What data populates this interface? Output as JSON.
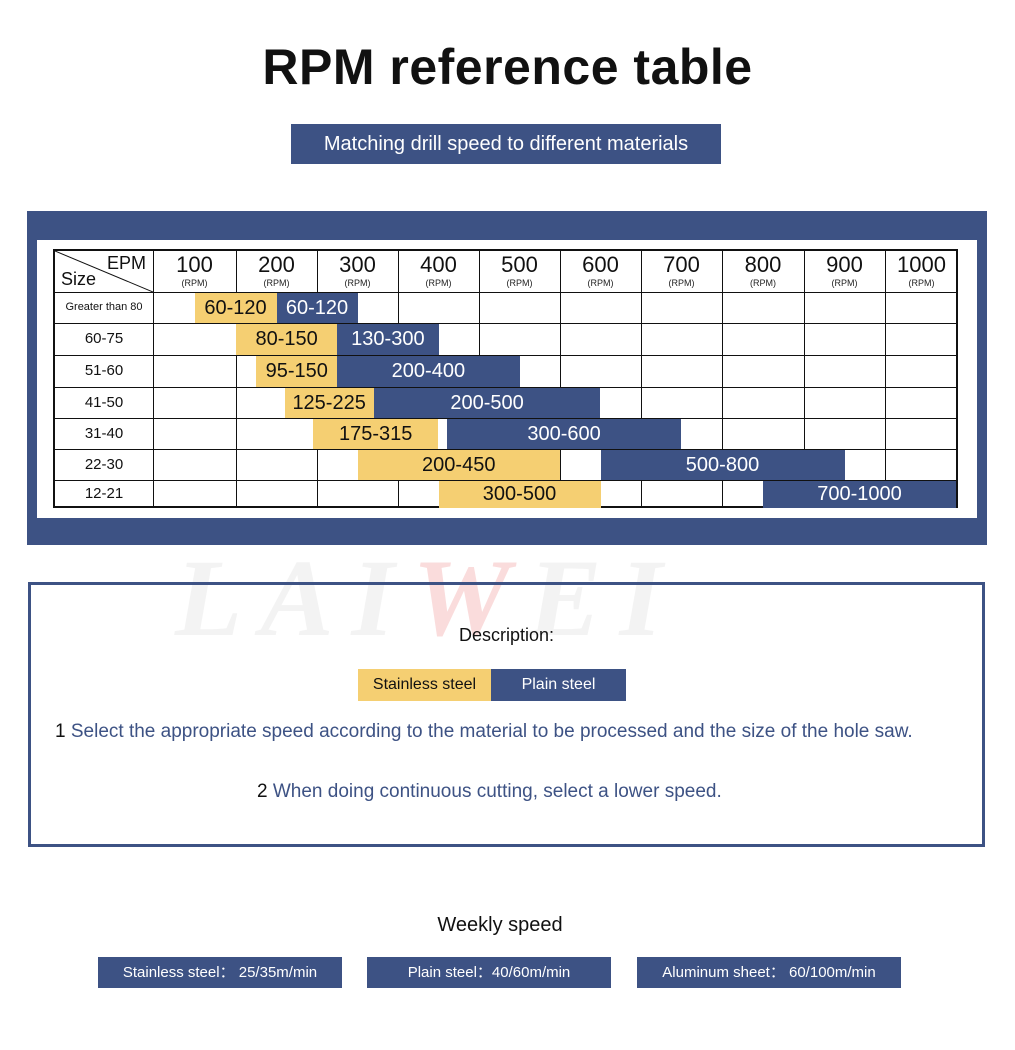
{
  "header": {
    "title": "RPM reference table",
    "subtitle": "Matching drill speed to different materials"
  },
  "table": {
    "corner_top": "EPM",
    "corner_bottom": "Size",
    "unit": "(RPM)",
    "columns": [
      "100",
      "200",
      "300",
      "400",
      "500",
      "600",
      "700",
      "800",
      "900",
      "1000"
    ],
    "rows": [
      "Greater than 80",
      "60-75",
      "51-60",
      "41-50",
      "31-40",
      "22-30",
      "12-21"
    ],
    "bars": [
      {
        "row": 0,
        "material": "stainless",
        "label": "60-120",
        "from": 100,
        "to": 200
      },
      {
        "row": 0,
        "material": "plain",
        "label": "60-120",
        "from": 200,
        "to": 300
      },
      {
        "row": 1,
        "material": "stainless",
        "label": "80-150",
        "from": 150,
        "to": 275
      },
      {
        "row": 1,
        "material": "plain",
        "label": "130-300",
        "from": 275,
        "to": 400
      },
      {
        "row": 2,
        "material": "stainless",
        "label": "95-150",
        "from": 175,
        "to": 275
      },
      {
        "row": 2,
        "material": "plain",
        "label": "200-400",
        "from": 275,
        "to": 500
      },
      {
        "row": 3,
        "material": "stainless",
        "label": "125-225",
        "from": 210,
        "to": 320
      },
      {
        "row": 3,
        "material": "plain",
        "label": "200-500",
        "from": 320,
        "to": 600
      },
      {
        "row": 4,
        "material": "stainless",
        "label": "175-315",
        "from": 245,
        "to": 400
      },
      {
        "row": 4,
        "material": "plain",
        "label": "300-600",
        "from": 410,
        "to": 700
      },
      {
        "row": 5,
        "material": "stainless",
        "label": "200-450",
        "from": 300,
        "to": 550
      },
      {
        "row": 5,
        "material": "plain",
        "label": "500-800",
        "from": 600,
        "to": 900
      },
      {
        "row": 6,
        "material": "stainless",
        "label": "300-500",
        "from": 400,
        "to": 600
      },
      {
        "row": 6,
        "material": "plain",
        "label": "700-1000",
        "from": 800,
        "to": 1100
      }
    ]
  },
  "colors": {
    "stainless": "#f5cf72",
    "plain": "#3d5284",
    "frame": "#3d5284"
  },
  "watermark": {
    "part1": "LAI",
    "part2": "W",
    "part3": "EI"
  },
  "description": {
    "title": "Description:",
    "legend_stainless": "Stainless steel",
    "legend_plain": "Plain steel",
    "line1_num": "1",
    "line1_text": "Select the appropriate speed according to the material to be processed and the size of the hole saw.",
    "line2_num": "2",
    "line2_text": "When doing continuous cutting, select a lower speed."
  },
  "weekly": {
    "title": "Weekly speed",
    "stainless": "Stainless steel： 25/35m/min",
    "plain": "Plain steel：40/60m/min",
    "aluminum": "Aluminum sheet： 60/100m/min"
  }
}
